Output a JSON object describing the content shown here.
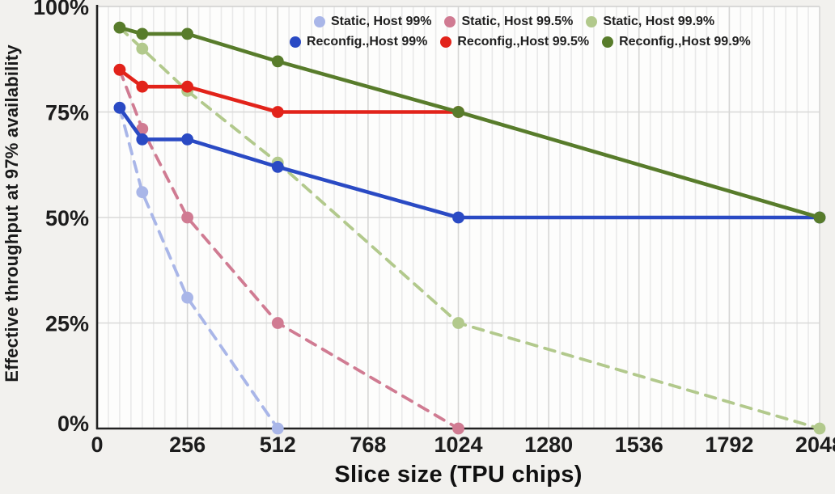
{
  "chart_data": {
    "type": "line",
    "title": "",
    "xlabel": "Slice size (TPU chips)",
    "ylabel": "Effective throughput at 97% availability",
    "xlim": [
      0,
      2048
    ],
    "ylim": [
      0,
      100
    ],
    "grid": "on",
    "minor_x_step": 32,
    "legend_position": "top",
    "x_ticks": [
      0,
      256,
      512,
      768,
      1024,
      1280,
      1536,
      1792,
      2048
    ],
    "x_tick_labels": [
      "0",
      "256",
      "512",
      "768",
      "1024",
      "1280",
      "1536",
      "1792",
      "2048"
    ],
    "y_ticks": [
      0,
      25,
      50,
      75,
      100
    ],
    "y_tick_labels": [
      "0%",
      "25%",
      "50%",
      "75%",
      "100%"
    ],
    "series": [
      {
        "name": "Static, Host 99%",
        "style": "dashed",
        "color": "#a9b6e8",
        "points": [
          [
            64,
            76
          ],
          [
            128,
            56
          ],
          [
            256,
            31
          ],
          [
            512,
            0
          ]
        ]
      },
      {
        "name": "Static, Host 99.5%",
        "style": "dashed",
        "color": "#d07b92",
        "points": [
          [
            64,
            85
          ],
          [
            128,
            71
          ],
          [
            256,
            50
          ],
          [
            512,
            25
          ],
          [
            1024,
            0
          ]
        ]
      },
      {
        "name": "Static, Host 99.9%",
        "style": "dashed",
        "color": "#b2c98c",
        "points": [
          [
            64,
            95
          ],
          [
            128,
            90
          ],
          [
            256,
            80
          ],
          [
            512,
            63
          ],
          [
            1024,
            25
          ],
          [
            2048,
            0
          ]
        ]
      },
      {
        "name": "Reconfig.,Host 99%",
        "style": "solid",
        "color": "#2a4ac4",
        "points": [
          [
            64,
            76
          ],
          [
            128,
            68.5
          ],
          [
            256,
            68.5
          ],
          [
            512,
            62
          ],
          [
            1024,
            50
          ],
          [
            2048,
            50
          ]
        ]
      },
      {
        "name": "Reconfig.,Host 99.5%",
        "style": "solid",
        "color": "#e2231a",
        "points": [
          [
            64,
            85
          ],
          [
            128,
            81
          ],
          [
            256,
            81
          ],
          [
            512,
            75
          ],
          [
            1024,
            75
          ]
        ]
      },
      {
        "name": "Reconfig.,Host 99.9%",
        "style": "solid",
        "color": "#587c2b",
        "points": [
          [
            64,
            95
          ],
          [
            128,
            93.5
          ],
          [
            256,
            93.5
          ],
          [
            512,
            87
          ],
          [
            1024,
            75
          ],
          [
            2048,
            50
          ]
        ]
      }
    ],
    "legend_rows": [
      [
        0,
        1,
        2
      ],
      [
        3,
        4,
        5
      ]
    ]
  }
}
